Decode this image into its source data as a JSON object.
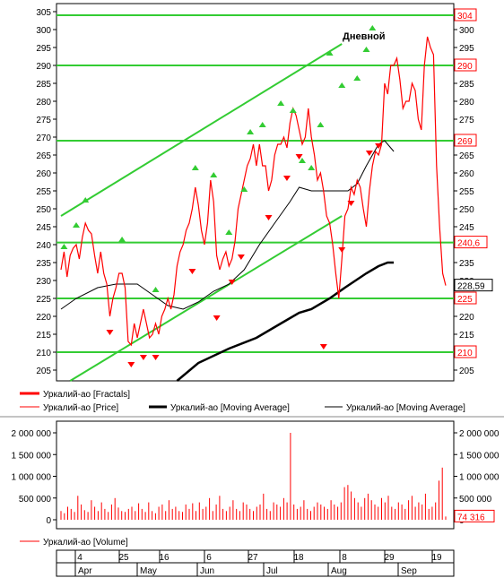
{
  "chart_data": [
    {
      "type": "line",
      "title": "Дневной",
      "y_ticks": [
        205,
        210,
        215,
        220,
        225,
        230,
        235,
        240,
        245,
        250,
        255,
        260,
        265,
        270,
        275,
        280,
        285,
        290,
        295,
        300,
        305
      ],
      "ylim": [
        201,
        306
      ],
      "levels": [
        304,
        290,
        269,
        240.6,
        228.59,
        225,
        210
      ],
      "level_labels": [
        "304",
        "290",
        "269",
        "240,6",
        "228,59",
        "225",
        "210"
      ],
      "channel": {
        "upper": [
          [
            0,
            248
          ],
          [
            92,
            296
          ]
        ],
        "lower": [
          [
            3,
            202
          ],
          [
            92,
            248
          ]
        ]
      },
      "series": [
        {
          "name": "Уркалий-ао [Fractals]",
          "up_fractals": [
            [
              1,
              238
            ],
            [
              5,
              244
            ],
            [
              8,
              251
            ],
            [
              20,
              240
            ],
            [
              31,
              226
            ],
            [
              44,
              260
            ],
            [
              50,
              258
            ],
            [
              55,
              242
            ],
            [
              60,
              254
            ],
            [
              62,
              270
            ],
            [
              66,
              272
            ],
            [
              72,
              278
            ],
            [
              76,
              276
            ],
            [
              79,
              262
            ],
            [
              82,
              260
            ],
            [
              85,
              272
            ],
            [
              88,
              292
            ],
            [
              92,
              283
            ],
            [
              97,
              285
            ],
            [
              100,
              293
            ],
            [
              102,
              299
            ]
          ],
          "down_fractals": [
            [
              16,
              217
            ],
            [
              23,
              208
            ],
            [
              27,
              210
            ],
            [
              31,
              210
            ],
            [
              43,
              234
            ],
            [
              51,
              221
            ],
            [
              56,
              231
            ],
            [
              59,
              238
            ],
            [
              68,
              249
            ],
            [
              74,
              260
            ],
            [
              78,
              266
            ],
            [
              86,
              213
            ],
            [
              92,
              240
            ],
            [
              95,
              253
            ],
            [
              101,
              267
            ],
            [
              104,
              269
            ]
          ]
        },
        {
          "name": "Уркалий-ао [Price]",
          "close": [
            233,
            238,
            231,
            237,
            239,
            240,
            236,
            242,
            246,
            244,
            243,
            237,
            232,
            238,
            232,
            229,
            220,
            225,
            228,
            232,
            232,
            228,
            213,
            212,
            218,
            214,
            218,
            222,
            218,
            214,
            215,
            218,
            215,
            220,
            222,
            225,
            222,
            226,
            234,
            238,
            240,
            244,
            246,
            250,
            256,
            251,
            244,
            240,
            246,
            258,
            252,
            237,
            233,
            236,
            238,
            234,
            236,
            241,
            250,
            254,
            258,
            262,
            264,
            268,
            262,
            268,
            262,
            262,
            255,
            258,
            265,
            268,
            268,
            270,
            267,
            274,
            278,
            276,
            272,
            268,
            270,
            278,
            270,
            265,
            258,
            260,
            255,
            248,
            246,
            240,
            232,
            225,
            236,
            248,
            250,
            256,
            254,
            258,
            256,
            250,
            245,
            255,
            262,
            266,
            265,
            268,
            285,
            282,
            290,
            290,
            292,
            286,
            278,
            280,
            280,
            285,
            283,
            275,
            272,
            290,
            298,
            295,
            293,
            262,
            245,
            232,
            228.59
          ]
        },
        {
          "name": "Уркалий-ао [Moving Average]",
          "ma_long": [
            [
              38,
              202
            ],
            [
              45,
              207
            ],
            [
              55,
              211
            ],
            [
              64,
              214
            ],
            [
              72,
              218
            ],
            [
              78,
              221
            ],
            [
              82,
              222
            ],
            [
              88,
              225
            ],
            [
              93,
              228
            ],
            [
              100,
              232
            ],
            [
              104,
              234
            ],
            [
              107,
              235
            ],
            [
              109,
              235
            ]
          ]
        },
        {
          "name": "Уркалий-ао [Moving Average]",
          "ma_short": [
            [
              0,
              222
            ],
            [
              5,
              225
            ],
            [
              12,
              228
            ],
            [
              18,
              229
            ],
            [
              25,
              229
            ],
            [
              30,
              226
            ],
            [
              35,
              223
            ],
            [
              40,
              222
            ],
            [
              45,
              224
            ],
            [
              50,
              227
            ],
            [
              55,
              229
            ],
            [
              60,
              233
            ],
            [
              65,
              240
            ],
            [
              70,
              246
            ],
            [
              75,
              252
            ],
            [
              78,
              256
            ],
            [
              82,
              255
            ],
            [
              86,
              255
            ],
            [
              90,
              255
            ],
            [
              94,
              255
            ],
            [
              97,
              257
            ],
            [
              100,
              262
            ],
            [
              104,
              268
            ],
            [
              106,
              269
            ],
            [
              109,
              266
            ]
          ]
        }
      ]
    },
    {
      "type": "bar",
      "y_ticks": [
        0,
        500000,
        1000000,
        1500000,
        2000000
      ],
      "y_tick_labels": [
        "0",
        "500 000",
        "1 000 000",
        "1 500 000",
        "2 000 000"
      ],
      "ylim": [
        -100000,
        2300000
      ],
      "last_value_label": "74 316",
      "series": [
        {
          "name": "Уркалий-ао [Volume]",
          "values": [
            200000,
            150000,
            300000,
            250000,
            180000,
            550000,
            350000,
            220000,
            180000,
            450000,
            300000,
            200000,
            400000,
            250000,
            180000,
            350000,
            500000,
            280000,
            200000,
            180000,
            250000,
            300000,
            200000,
            380000,
            250000,
            180000,
            400000,
            200000,
            150000,
            300000,
            350000,
            200000,
            450000,
            250000,
            300000,
            200000,
            180000,
            350000,
            250000,
            380000,
            200000,
            400000,
            250000,
            300000,
            500000,
            200000,
            350000,
            550000,
            250000,
            200000,
            300000,
            450000,
            250000,
            200000,
            400000,
            350000,
            250000,
            200000,
            300000,
            350000,
            600000,
            250000,
            200000,
            400000,
            350000,
            300000,
            500000,
            400000,
            2000000,
            350000,
            250000,
            300000,
            450000,
            250000,
            200000,
            300000,
            400000,
            350000,
            300000,
            250000,
            450000,
            350000,
            300000,
            400000,
            750000,
            800000,
            650000,
            500000,
            400000,
            300000,
            500000,
            600000,
            450000,
            350000,
            300000,
            500000,
            400000,
            550000,
            300000,
            250000,
            400000,
            350000,
            250000,
            450000,
            550000,
            300000,
            400000,
            350000,
            600000,
            250000,
            300000,
            400000,
            900000,
            1200000,
            74316
          ]
        }
      ]
    }
  ],
  "legend": {
    "top": [
      {
        "label": "Уркалий-ао [Fractals]",
        "color": "#ff0000",
        "style": "thick"
      },
      {
        "label": "Уркалий-ао [Price]",
        "color": "#ff0000",
        "style": "thin"
      },
      {
        "label": "Уркалий-ао [Moving Average]",
        "color": "#000000",
        "style": "thick"
      },
      {
        "label": "Уркалий-ао [Moving Average]",
        "color": "#000000",
        "style": "thin"
      }
    ],
    "bottom": [
      {
        "label": "Уркалий-ао [Volume]",
        "color": "#ff0000",
        "style": "thin"
      }
    ]
  },
  "time_axis": {
    "day_ticks": [
      "4",
      "25",
      "16",
      "6",
      "27",
      "18",
      "8",
      "29",
      "19"
    ],
    "months": [
      "Apr",
      "May",
      "Jun",
      "Jul",
      "Aug",
      "Sep"
    ]
  },
  "colors": {
    "price": "#ff0000",
    "level": "#33cc33",
    "fractal_up": "#33cc33",
    "fractal_down": "#ff0000",
    "ma": "#000000"
  }
}
